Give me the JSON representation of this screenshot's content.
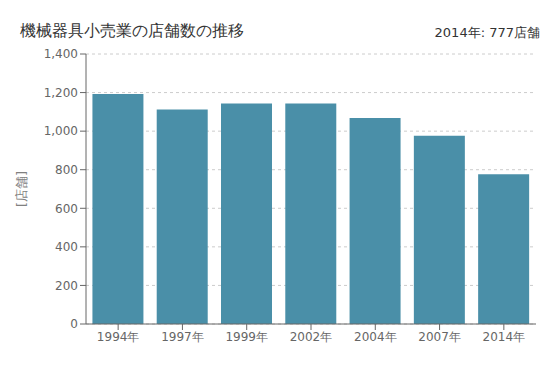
{
  "chart_data": {
    "type": "bar",
    "title": "機械器具小売業の店舗数の推移",
    "ylabel": "[店舗]",
    "annotation": "2014年: 777店舗",
    "categories": [
      "1994年",
      "1997年",
      "1999年",
      "2002年",
      "2004年",
      "2007年",
      "2014年"
    ],
    "values": [
      1192,
      1112,
      1143,
      1143,
      1068,
      976,
      777
    ],
    "color": "#4a8fa8",
    "ylim": [
      0,
      1400
    ],
    "yticks": [
      0,
      200,
      400,
      600,
      800,
      {
        "value": 1000,
        "label": "1,000"
      },
      {
        "value": 1200,
        "label": "1,200"
      },
      {
        "value": 1400,
        "label": "1,400"
      }
    ],
    "grid": true
  }
}
